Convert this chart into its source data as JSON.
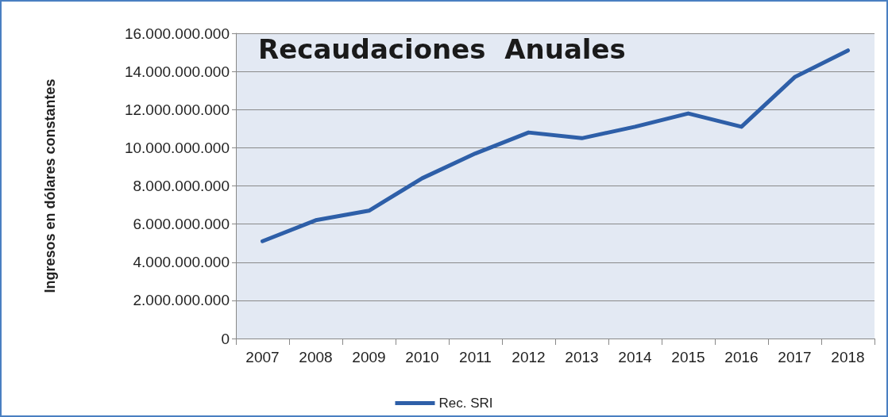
{
  "chart_data": {
    "type": "line",
    "title": "Recaudaciones  Anuales",
    "ylabel": "Ingresos en dólares constantes",
    "categories": [
      "2007",
      "2008",
      "2009",
      "2010",
      "2011",
      "2012",
      "2013",
      "2014",
      "2015",
      "2016",
      "2017",
      "2018"
    ],
    "series": [
      {
        "name": "Rec. SRI",
        "color": "#2e5fa8",
        "values": [
          5100000000,
          6200000000,
          6700000000,
          8400000000,
          9700000000,
          10800000000,
          10500000000,
          11100000000,
          11800000000,
          11100000000,
          13700000000,
          15100000000
        ]
      }
    ],
    "ylim": [
      0,
      16000000000
    ],
    "yticks": [
      0,
      {
        "value": 2000000000,
        "label": "2.000.000.000"
      },
      {
        "value": 4000000000,
        "label": "4.000.000.000"
      },
      {
        "value": 6000000000,
        "label": "6.000.000.000"
      },
      {
        "value": 8000000000,
        "label": "8.000.000.000"
      },
      {
        "value": 10000000000,
        "label": "10.000.000.000"
      },
      {
        "value": 12000000000,
        "label": "12.000.000.000"
      },
      {
        "value": 14000000000,
        "label": "14.000.000.000"
      },
      {
        "value": 16000000000,
        "label": "16.000.000.000"
      }
    ],
    "grid": "y",
    "legend": "bottom",
    "marker": "none",
    "line_style": "solid"
  }
}
